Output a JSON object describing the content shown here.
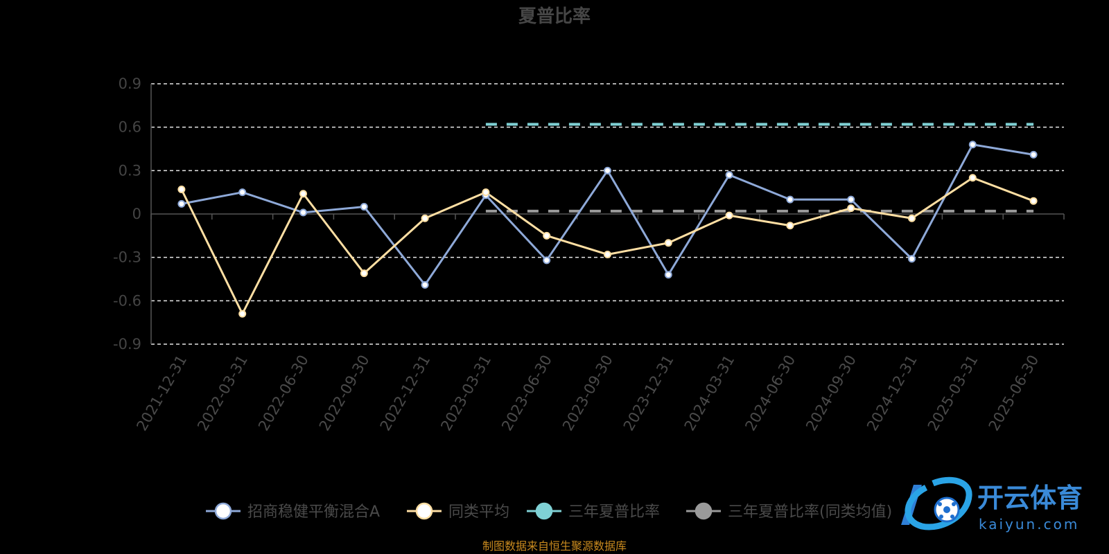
{
  "chart_data": {
    "type": "line",
    "title": "夏普比率",
    "categories": [
      "2021-12-31",
      "2022-03-31",
      "2022-06-30",
      "2022-09-30",
      "2022-12-31",
      "2023-03-31",
      "2023-06-30",
      "2023-09-30",
      "2023-12-31",
      "2024-03-31",
      "2024-06-30",
      "2024-09-30",
      "2024-12-31",
      "2025-03-31",
      "2025-06-30"
    ],
    "ylim": [
      -0.9,
      0.9
    ],
    "yticks": [
      "0.9",
      "0.6",
      "0.3",
      "0",
      "-0.3",
      "-0.6",
      "-0.9"
    ],
    "grid": "dashed horizontal",
    "legend_position": "bottom",
    "series": [
      {
        "name": "招商稳健平衡混合A",
        "color": "#8ea9d8",
        "values": [
          0.07,
          0.15,
          0.01,
          0.05,
          -0.49,
          0.13,
          -0.32,
          0.3,
          -0.42,
          0.27,
          0.1,
          0.1,
          -0.31,
          0.48,
          0.41
        ]
      },
      {
        "name": "同类平均",
        "color": "#ffdfa3",
        "values": [
          0.17,
          -0.69,
          0.14,
          -0.41,
          -0.03,
          0.15,
          -0.15,
          -0.28,
          -0.2,
          -0.01,
          -0.08,
          0.04,
          -0.03,
          0.25,
          0.09
        ]
      },
      {
        "name": "三年夏普比率",
        "color": "#7fd1d5",
        "style": "dashed",
        "x_range": [
          "2023-03-31",
          "2025-06-30"
        ],
        "value": 0.62
      },
      {
        "name": "三年夏普比率(同类均值)",
        "color": "#9a9a9a",
        "style": "dashed",
        "x_range": [
          "2023-03-31",
          "2025-06-30"
        ],
        "value": 0.02
      }
    ]
  },
  "source_note": "制图数据来自恒生聚源数据库",
  "brand": {
    "name_cn": "开云体育",
    "name_en": "kaiyun.com"
  }
}
